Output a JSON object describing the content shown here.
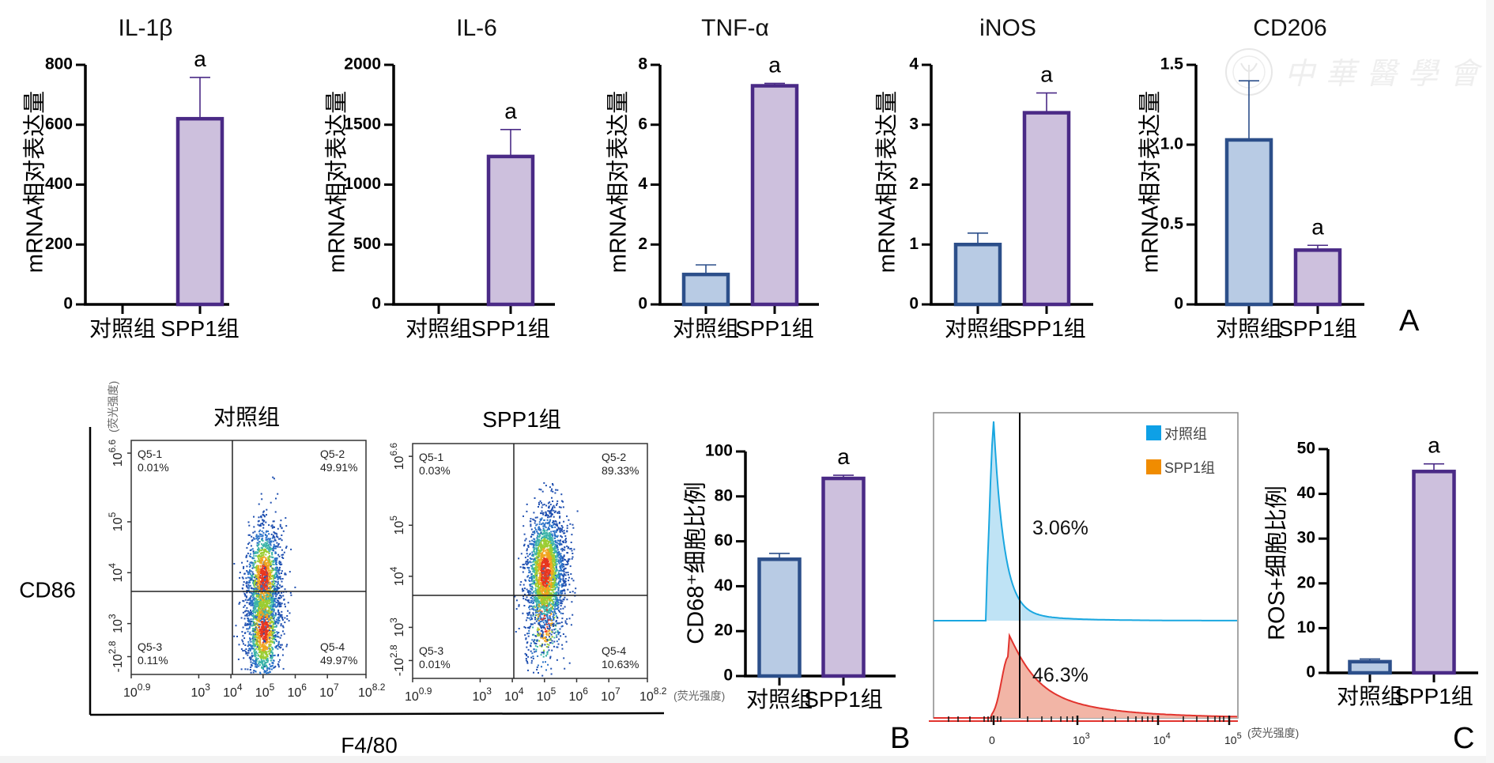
{
  "figure": {
    "panel_labels": [
      "A",
      "B",
      "C"
    ],
    "watermark": {
      "text": "中華醫學會",
      "logo": "chinese-medical-association-seal-icon"
    },
    "colors": {
      "control_fill": "#b8cbe4",
      "control_edge": "#2c4f8a",
      "spp1_fill": "#cdc0dd",
      "spp1_edge": "#4a2a86",
      "hist_control": "#1aa7e0",
      "hist_control_fill": "#bfe3f5",
      "hist_spp1": "#e2342e",
      "hist_spp1_fill": "#f2b5a6",
      "legend_control": "#0ea0e6",
      "legend_spp1": "#f08c00"
    }
  },
  "chart_data": [
    {
      "id": "il1b",
      "panel": "A",
      "type": "bar",
      "title": "IL-1β",
      "ylabel": "mRNA相对表达量",
      "xlabel": "",
      "categories": [
        "对照组",
        "SPP1组"
      ],
      "values": [
        0,
        620
      ],
      "errors": [
        0,
        138
      ],
      "significance": [
        "",
        "a"
      ],
      "ylim": [
        0,
        800
      ],
      "yticks": [
        0,
        200,
        400,
        600,
        800
      ],
      "ytick_labels": [
        "0",
        "200",
        "400",
        "600",
        "800"
      ]
    },
    {
      "id": "il6",
      "panel": "A",
      "type": "bar",
      "title": "IL-6",
      "ylabel": "mRNA相对表达量",
      "xlabel": "",
      "categories": [
        "对照组",
        "SPP1组"
      ],
      "values": [
        0,
        1235
      ],
      "errors": [
        0,
        225
      ],
      "significance": [
        "",
        "a"
      ],
      "ylim": [
        0,
        2000
      ],
      "yticks": [
        0,
        500,
        1000,
        1500,
        2000
      ],
      "ytick_labels": [
        "0",
        "500",
        "1000",
        "1500",
        "2000"
      ]
    },
    {
      "id": "tnfa",
      "panel": "A",
      "type": "bar",
      "title": "TNF-α",
      "ylabel": "mRNA相对表达量",
      "xlabel": "",
      "categories": [
        "对照组",
        "SPP1组"
      ],
      "values": [
        1.0,
        7.3
      ],
      "errors": [
        0.32,
        0.08
      ],
      "significance": [
        "",
        "a"
      ],
      "ylim": [
        0,
        8
      ],
      "yticks": [
        0,
        2,
        4,
        6,
        8
      ],
      "ytick_labels": [
        "0",
        "2",
        "4",
        "6",
        "8"
      ]
    },
    {
      "id": "inos",
      "panel": "A",
      "type": "bar",
      "title": "iNOS",
      "ylabel": "mRNA相对表达量",
      "xlabel": "",
      "categories": [
        "对照组",
        "SPP1组"
      ],
      "values": [
        1.0,
        3.2
      ],
      "errors": [
        0.19,
        0.33
      ],
      "significance": [
        "",
        "a"
      ],
      "ylim": [
        0,
        4
      ],
      "yticks": [
        0,
        1,
        2,
        3,
        4
      ],
      "ytick_labels": [
        "0",
        "1",
        "2",
        "3",
        "4"
      ]
    },
    {
      "id": "cd206",
      "panel": "A",
      "type": "bar",
      "title": "CD206",
      "ylabel": "mRNA相对表达量",
      "xlabel": "",
      "categories": [
        "对照组",
        "SPP1组"
      ],
      "values": [
        1.03,
        0.34
      ],
      "errors": [
        0.37,
        0.03
      ],
      "significance": [
        "",
        "a"
      ],
      "ylim": [
        0,
        1.5
      ],
      "yticks": [
        0,
        0.5,
        1.0,
        1.5
      ],
      "ytick_labels": [
        "0",
        "0.5",
        "1.0",
        "1.5"
      ]
    },
    {
      "id": "flow-control",
      "panel": "B",
      "type": "scatter",
      "title": "对照组",
      "xlabel": "F4/80",
      "ylabel": "CD86",
      "axis_unit": "(荧光强度)",
      "xtick_labels": [
        [
          "10",
          "0.9"
        ],
        [
          "10",
          "3"
        ],
        [
          "10",
          "4"
        ],
        [
          "10",
          "5"
        ],
        [
          "10",
          "6"
        ],
        [
          "10",
          "7"
        ],
        [
          "10",
          "8.2"
        ]
      ],
      "ytick_labels": [
        [
          "-10",
          "2.8"
        ],
        [
          "10",
          "3"
        ],
        [
          "10",
          "4"
        ],
        [
          "10",
          "5"
        ],
        [
          "10",
          "6.6"
        ]
      ],
      "quadrants": [
        {
          "name": "Q5-1",
          "percent": "0.01%"
        },
        {
          "name": "Q5-2",
          "percent": "49.91%"
        },
        {
          "name": "Q5-3",
          "percent": "0.11%"
        },
        {
          "name": "Q5-4",
          "percent": "49.97%"
        }
      ],
      "population": {
        "center_log_x": 5.0,
        "upper_center_log_y": 3.9,
        "lower_center_log_y": 2.9,
        "spread_x": 0.28,
        "spread_y": 0.55
      }
    },
    {
      "id": "flow-spp1",
      "panel": "B",
      "type": "scatter",
      "title": "SPP1组",
      "xlabel": "F4/80",
      "ylabel": "CD86",
      "axis_unit": "(荧光强度)",
      "xtick_labels": [
        [
          "10",
          "0.9"
        ],
        [
          "10",
          "3"
        ],
        [
          "10",
          "4"
        ],
        [
          "10",
          "5"
        ],
        [
          "10",
          "6"
        ],
        [
          "10",
          "7"
        ],
        [
          "10",
          "8.2"
        ]
      ],
      "ytick_labels": [
        [
          "-10",
          "2.8"
        ],
        [
          "10",
          "3"
        ],
        [
          "10",
          "4"
        ],
        [
          "10",
          "5"
        ],
        [
          "10",
          "6.6"
        ]
      ],
      "quadrants": [
        {
          "name": "Q5-1",
          "percent": "0.03%"
        },
        {
          "name": "Q5-2",
          "percent": "89.33%"
        },
        {
          "name": "Q5-3",
          "percent": "0.01%"
        },
        {
          "name": "Q5-4",
          "percent": "10.63%"
        }
      ],
      "population": {
        "center_log_x": 5.0,
        "upper_center_log_y": 4.1,
        "lower_center_log_y": 3.2,
        "spread_x": 0.3,
        "spread_y": 0.6
      }
    },
    {
      "id": "cd68",
      "panel": "B",
      "type": "bar",
      "title": "",
      "ylabel": "CD68⁺细胞比例",
      "xlabel": "",
      "categories": [
        "对照组",
        "SPP1组"
      ],
      "values": [
        52,
        88
      ],
      "errors": [
        2.6,
        1.4
      ],
      "significance": [
        "",
        "a"
      ],
      "ylim": [
        0,
        100
      ],
      "yticks": [
        0,
        20,
        40,
        60,
        80,
        100
      ],
      "ytick_labels": [
        "0",
        "20",
        "40",
        "60",
        "80",
        "100"
      ]
    },
    {
      "id": "ros-histogram",
      "panel": "C",
      "type": "area",
      "title": "",
      "xlabel": "(荧光强度)",
      "xtick_labels": [
        [
          "0",
          ""
        ],
        [
          "10",
          "3"
        ],
        [
          "10",
          "4"
        ],
        [
          "10",
          "5"
        ]
      ],
      "legend": [
        {
          "label": "对照组",
          "color": "#0ea0e6"
        },
        {
          "label": "SPP1组",
          "color": "#f08c00"
        }
      ],
      "legend_position": "top-right",
      "series": [
        {
          "name": "对照组",
          "gate_percent": "3.06%"
        },
        {
          "name": "SPP1组",
          "gate_percent": "46.3%"
        }
      ]
    },
    {
      "id": "ros",
      "panel": "C",
      "type": "bar",
      "title": "",
      "ylabel": "ROS+细胞比例",
      "xlabel": "",
      "categories": [
        "对照组",
        "SPP1组"
      ],
      "values": [
        2.5,
        45
      ],
      "errors": [
        0.6,
        1.7
      ],
      "significance": [
        "",
        "a"
      ],
      "ylim": [
        0,
        50
      ],
      "yticks": [
        0,
        10,
        20,
        30,
        40,
        50
      ],
      "ytick_labels": [
        "0",
        "10",
        "20",
        "30",
        "40",
        "50"
      ]
    }
  ]
}
